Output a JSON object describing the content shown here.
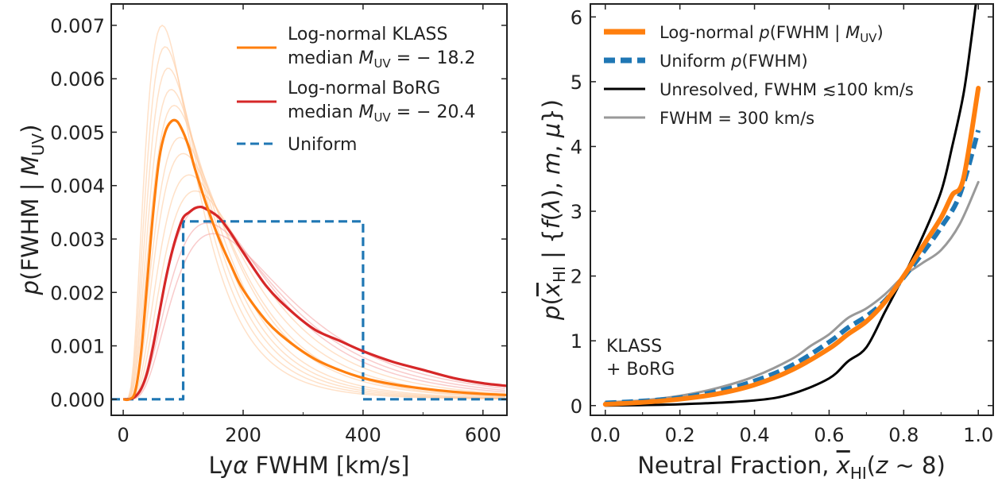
{
  "chart_data": [
    {
      "type": "line",
      "xlabel": "Lyα FWHM [km/s]",
      "ylabel": "p(FWHM | M_UV)",
      "xlim": [
        -20,
        640
      ],
      "ylim": [
        -0.0003,
        0.0074
      ],
      "xticks": [
        "0",
        "200",
        "400",
        "600"
      ],
      "yticks": [
        "0.000",
        "0.001",
        "0.002",
        "0.003",
        "0.004",
        "0.005",
        "0.006",
        "0.007"
      ],
      "legend_placement": "upper-right",
      "legend": [
        {
          "line1": "Log-normal KLASS",
          "line2_prefix": "median ",
          "line2_sym": "M",
          "line2_sub": "UV",
          "line2_value": " = − 18.2",
          "color": "#ff7f0e",
          "style": "solid"
        },
        {
          "line1": "Log-normal BoRG",
          "line2_prefix": "median ",
          "line2_sym": "M",
          "line2_sub": "UV",
          "line2_value": " = − 20.4",
          "color": "#d62728",
          "style": "solid"
        },
        {
          "line1": "Uniform",
          "color": "#1f77b4",
          "style": "dashed"
        }
      ],
      "series": [
        {
          "key": "klass",
          "color": "#ff7f0e",
          "x": [
            0,
            10,
            20,
            30,
            40,
            50,
            60,
            70,
            80,
            90,
            100,
            110,
            120,
            140,
            160,
            180,
            200,
            240,
            280,
            320,
            360,
            400,
            450,
            500,
            550,
            600,
            640
          ],
          "y": [
            0,
            0,
            0.00015,
            0.0009,
            0.0022,
            0.0035,
            0.0045,
            0.005,
            0.0052,
            0.0052,
            0.005,
            0.0047,
            0.0043,
            0.0036,
            0.003,
            0.0025,
            0.00205,
            0.00145,
            0.00105,
            0.00075,
            0.00055,
            0.0004,
            0.00028,
            0.0002,
            0.00014,
            0.0001,
            8e-05
          ]
        },
        {
          "key": "borg",
          "color": "#d62728",
          "x": [
            0,
            10,
            20,
            30,
            40,
            50,
            60,
            70,
            80,
            90,
            100,
            110,
            120,
            130,
            140,
            160,
            180,
            200,
            240,
            280,
            320,
            360,
            400,
            450,
            500,
            550,
            600,
            640
          ],
          "y": [
            0,
            0,
            5e-05,
            0.0002,
            0.0005,
            0.001,
            0.0016,
            0.0022,
            0.0027,
            0.0031,
            0.0034,
            0.0035,
            0.00358,
            0.0036,
            0.00355,
            0.0034,
            0.0031,
            0.00275,
            0.0021,
            0.00165,
            0.0013,
            0.0011,
            0.0009,
            0.0007,
            0.00055,
            0.0004,
            0.0003,
            0.00025
          ]
        },
        {
          "key": "uniform",
          "color": "#1f77b4",
          "dashed": true,
          "x": [
            -20,
            100,
            100,
            400,
            400,
            640
          ],
          "y": [
            0,
            0,
            0.00333,
            0.00333,
            0,
            0
          ]
        }
      ],
      "faint_series": [
        {
          "peak_x": 65,
          "peak_y": 0.007
        },
        {
          "peak_x": 70,
          "peak_y": 0.0066
        },
        {
          "peak_x": 75,
          "peak_y": 0.0062
        },
        {
          "peak_x": 80,
          "peak_y": 0.0058
        },
        {
          "peak_x": 85,
          "peak_y": 0.0055
        },
        {
          "peak_x": 95,
          "peak_y": 0.0049
        },
        {
          "peak_x": 100,
          "peak_y": 0.0046
        },
        {
          "peak_x": 110,
          "peak_y": 0.0042
        },
        {
          "peak_x": 120,
          "peak_y": 0.0039
        },
        {
          "peak_x": 130,
          "peak_y": 0.0036
        },
        {
          "peak_x": 140,
          "peak_y": 0.0033
        },
        {
          "peak_x": 150,
          "peak_y": 0.0031
        }
      ]
    },
    {
      "type": "line",
      "xlabel": "Neutral Fraction, x̄HI(z ∼ 8)",
      "ylabel": "p(x̄HI | {f(λ), m, μ})",
      "xlim": [
        -0.04,
        1.04
      ],
      "ylim": [
        -0.15,
        6.2
      ],
      "xticks": [
        "0.0",
        "0.2",
        "0.4",
        "0.6",
        "0.8",
        "1.0"
      ],
      "yticks": [
        "0",
        "1",
        "2",
        "3",
        "4",
        "5",
        "6"
      ],
      "legend_placement": "upper-left",
      "annotation": [
        "KLASS",
        "+ BoRG"
      ],
      "legend": [
        {
          "parts": [
            {
              "t": "Log-normal "
            },
            {
              "t": "p",
              "i": true
            },
            {
              "t": "(FWHM | "
            },
            {
              "t": "M",
              "i": true
            },
            {
              "t": "UV",
              "sub": true
            },
            {
              "t": ")"
            }
          ],
          "color": "#ff7f0e",
          "style": "solid-thick"
        },
        {
          "parts": [
            {
              "t": "Uniform "
            },
            {
              "t": "p",
              "i": true
            },
            {
              "t": "(FWHM)"
            }
          ],
          "color": "#1f77b4",
          "style": "dashed-thick"
        },
        {
          "parts": [
            {
              "t": "Unresolved, FWHM ≲100 km/s"
            }
          ],
          "color": "#000000",
          "style": "solid"
        },
        {
          "parts": [
            {
              "t": "FWHM = 300 km/s"
            }
          ],
          "color": "#999999",
          "style": "solid"
        }
      ],
      "series": [
        {
          "key": "fwhm300",
          "color": "#999999",
          "x": [
            0,
            0.1,
            0.2,
            0.3,
            0.4,
            0.5,
            0.55,
            0.6,
            0.65,
            0.7,
            0.75,
            0.8,
            0.85,
            0.9,
            0.95,
            1.0
          ],
          "y": [
            0.05,
            0.08,
            0.15,
            0.27,
            0.45,
            0.72,
            0.92,
            1.1,
            1.35,
            1.5,
            1.72,
            2.0,
            2.2,
            2.4,
            2.8,
            3.45
          ]
        },
        {
          "key": "unresolved",
          "color": "#000000",
          "x": [
            0,
            0.2,
            0.4,
            0.5,
            0.6,
            0.65,
            0.7,
            0.75,
            0.8,
            0.85,
            0.9,
            0.93,
            0.96,
            0.98,
            1.0
          ],
          "y": [
            0.0,
            0.02,
            0.08,
            0.18,
            0.42,
            0.68,
            0.9,
            1.45,
            2.0,
            2.6,
            3.3,
            4.0,
            4.8,
            5.6,
            6.5
          ]
        },
        {
          "key": "uniform",
          "color": "#1f77b4",
          "dashed": true,
          "x": [
            0,
            0.1,
            0.2,
            0.3,
            0.4,
            0.5,
            0.6,
            0.65,
            0.7,
            0.75,
            0.8,
            0.85,
            0.9,
            0.95,
            1.0
          ],
          "y": [
            0.04,
            0.07,
            0.12,
            0.22,
            0.38,
            0.62,
            0.98,
            1.2,
            1.38,
            1.62,
            1.98,
            2.35,
            2.75,
            3.25,
            4.25
          ]
        },
        {
          "key": "lognormal",
          "color": "#ff7f0e",
          "thick": true,
          "x": [
            0,
            0.1,
            0.2,
            0.3,
            0.4,
            0.5,
            0.6,
            0.65,
            0.7,
            0.75,
            0.8,
            0.85,
            0.9,
            0.93,
            0.96,
            1.0
          ],
          "y": [
            0.02,
            0.05,
            0.1,
            0.18,
            0.32,
            0.55,
            0.88,
            1.1,
            1.3,
            1.6,
            2.0,
            2.45,
            2.9,
            3.25,
            3.5,
            4.9
          ]
        }
      ]
    }
  ]
}
